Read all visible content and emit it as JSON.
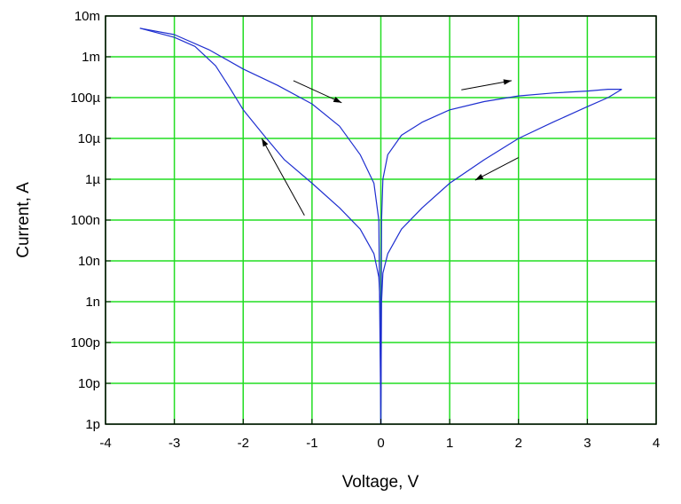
{
  "chart_data": {
    "type": "line",
    "xlabel": "Voltage, V",
    "ylabel": "Current, A",
    "xlim": [
      -4,
      4
    ],
    "ylim": [
      1e-12,
      0.01
    ],
    "yscale": "log",
    "grid": true,
    "x_ticks": [
      {
        "value": -4,
        "label": "-4"
      },
      {
        "value": -3,
        "label": "-3"
      },
      {
        "value": -2,
        "label": "-2"
      },
      {
        "value": -1,
        "label": "-1"
      },
      {
        "value": 0,
        "label": "0"
      },
      {
        "value": 1,
        "label": "1"
      },
      {
        "value": 2,
        "label": "2"
      },
      {
        "value": 3,
        "label": "3"
      },
      {
        "value": 4,
        "label": "4"
      }
    ],
    "y_ticks": [
      {
        "value": 1e-12,
        "label": "1p"
      },
      {
        "value": 1e-11,
        "label": "10p"
      },
      {
        "value": 1e-10,
        "label": "100p"
      },
      {
        "value": 1e-09,
        "label": "1n"
      },
      {
        "value": 1e-08,
        "label": "10n"
      },
      {
        "value": 1e-07,
        "label": "100n"
      },
      {
        "value": 1e-06,
        "label": "1µ"
      },
      {
        "value": 1e-05,
        "label": "10µ"
      },
      {
        "value": 0.0001,
        "label": "100µ"
      },
      {
        "value": 0.001,
        "label": "1m"
      },
      {
        "value": 0.01,
        "label": "10m"
      }
    ],
    "colors": {
      "series": "#1f2fd0",
      "grid": "#22dd22",
      "arrow": "#000000"
    },
    "series": [
      {
        "x": [
          0.0,
          0.01,
          0.03,
          0.1,
          0.3,
          0.6,
          1.0,
          1.5,
          2.0,
          2.5,
          3.0,
          3.3,
          3.5
        ],
        "y": [
          1e-12,
          1e-07,
          1e-06,
          4e-06,
          1.2e-05,
          2.5e-05,
          5e-05,
          8e-05,
          0.00011,
          0.00013,
          0.000145,
          0.00016,
          0.00016
        ]
      },
      {
        "x": [
          3.5,
          3.3,
          3.0,
          2.5,
          2.0,
          1.5,
          1.0,
          0.6,
          0.3,
          0.1,
          0.03,
          0.01,
          0.0
        ],
        "y": [
          0.00016,
          0.0001,
          6e-05,
          2.5e-05,
          1e-05,
          3e-06,
          8e-07,
          2e-07,
          6e-08,
          1.5e-08,
          5e-09,
          1e-09,
          1e-12
        ]
      },
      {
        "x": [
          0.0,
          -0.01,
          -0.03,
          -0.1,
          -0.3,
          -0.6,
          -1.0,
          -1.4,
          -1.7,
          -2.0,
          -2.2,
          -2.4,
          -2.7,
          -3.0,
          -3.5
        ],
        "y": [
          1e-12,
          1e-09,
          4e-09,
          1.5e-08,
          6e-08,
          2e-07,
          8e-07,
          3e-06,
          1.2e-05,
          5e-05,
          0.00018,
          0.0006,
          0.0018,
          0.003,
          0.005
        ]
      },
      {
        "x": [
          -3.5,
          -3.0,
          -2.5,
          -2.0,
          -1.5,
          -1.0,
          -0.6,
          -0.3,
          -0.1,
          -0.03,
          0.0
        ],
        "y": [
          0.005,
          0.0035,
          0.0015,
          0.0005,
          0.0002,
          7e-05,
          2e-05,
          4e-06,
          8e-07,
          1e-07,
          1e-12
        ]
      }
    ],
    "arrows": [
      {
        "from": [
          -1.27,
          0.00026
        ],
        "to": [
          -0.57,
          7.5e-05
        ]
      },
      {
        "from": [
          1.17,
          0.000155
        ],
        "to": [
          1.9,
          0.00026
        ]
      },
      {
        "from": [
          2.0,
          3.4e-06
        ],
        "to": [
          1.37,
          9.5e-07
        ]
      },
      {
        "from": [
          -1.11,
          1.3e-07
        ],
        "to": [
          -1.73,
          1e-05
        ]
      }
    ]
  }
}
